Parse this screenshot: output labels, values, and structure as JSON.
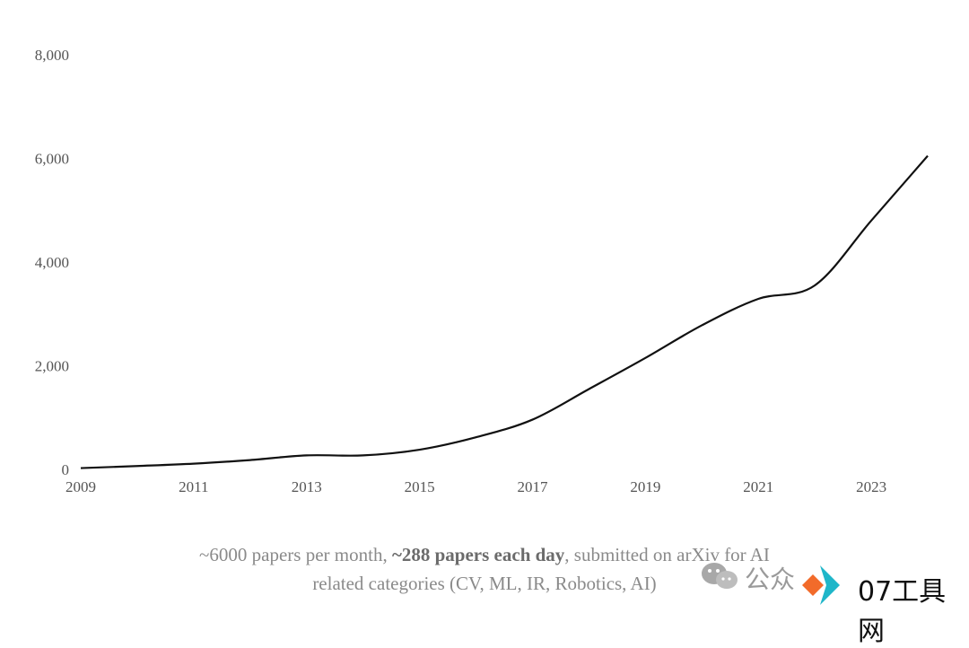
{
  "chart_data": {
    "type": "line",
    "title": "",
    "xlabel": "",
    "ylabel": "",
    "x": [
      2009,
      2010,
      2011,
      2012,
      2013,
      2014,
      2015,
      2016,
      2017,
      2018,
      2019,
      2020,
      2021,
      2022,
      2023,
      2024
    ],
    "series": [
      {
        "values": [
          25,
          65,
          110,
          180,
          270,
          270,
          380,
          620,
          960,
          1550,
          2150,
          2780,
          3290,
          3550,
          4800,
          6050
        ]
      }
    ],
    "xticks": [
      "2009",
      "2011",
      "2013",
      "2015",
      "2017",
      "2019",
      "2021",
      "2023"
    ],
    "yticks": [
      "0",
      "2,000",
      "4,000",
      "6,000",
      "8,000"
    ],
    "xlim": [
      2009,
      2024
    ],
    "ylim": [
      0,
      8000
    ],
    "grid": false,
    "line_color": "#111111"
  },
  "caption": {
    "line1_a": "~6000 papers per month, ",
    "line1_b": "~288 papers each day",
    "line1_c": ", submitted on arXiv for AI",
    "line2": "related categories (CV, ML, IR, Robotics, AI)"
  },
  "watermark": {
    "left_text": "公众",
    "site": "07工具网",
    "logo_colors": {
      "diamond_orange": "#F26B2A",
      "chevron_teal": "#1FB6C9"
    }
  }
}
